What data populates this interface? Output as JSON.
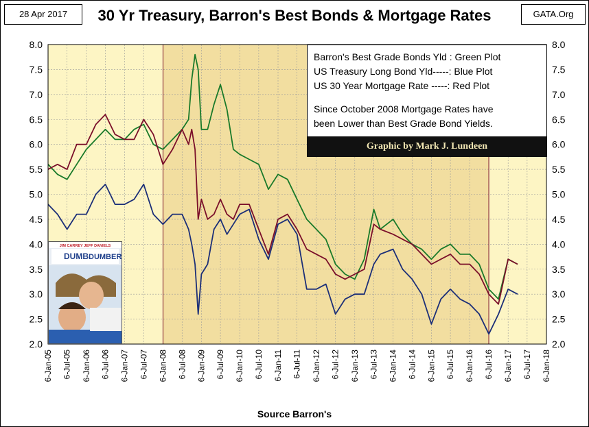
{
  "header": {
    "date": "28 Apr 2017",
    "title": "30 Yr Treasury, Barron's Best Bonds & Mortgage Rates",
    "source": "GATA.Org"
  },
  "legend": {
    "line1": "Barron's Best Grade Bonds Yld : Green Plot",
    "line2": "US Treasury Long Bond Yld-----: Blue Plot",
    "line3": "US 30 Year Mortgage Rate -----: Red Plot",
    "note1": "Since October 2008 Mortgage Rates have",
    "note2": "been Lower than Best Grade Bond Yields."
  },
  "credit": "Graphic by Mark J. Lundeen",
  "poster": {
    "line1": "JIM CARREY   JEFF DANIELS",
    "title1": "DUMB",
    "title2": "DUMBER"
  },
  "colors": {
    "plot_bg": "#fdf5c4",
    "shade_bg": "#f2deA0",
    "green": "#1a7a2a",
    "blue": "#1c2f78",
    "red": "#7a0f2a"
  },
  "chart_data": {
    "type": "line",
    "title": "30 Yr Treasury, Barron's Best Bonds & Mortgage Rates",
    "xlabel": "Source Barron's",
    "ylabel": "",
    "ylim": [
      2.0,
      8.0
    ],
    "xlim": [
      "2005-01-06",
      "2018-01-06"
    ],
    "y_ticks": [
      "2.0",
      "2.5",
      "3.0",
      "3.5",
      "4.0",
      "4.5",
      "5.0",
      "5.5",
      "6.0",
      "6.5",
      "7.0",
      "7.5",
      "8.0"
    ],
    "x_ticks": [
      "6-Jan-05",
      "6-Jul-05",
      "6-Jan-06",
      "6-Jul-06",
      "6-Jan-07",
      "6-Jul-07",
      "6-Jan-08",
      "6-Jul-08",
      "6-Jan-09",
      "6-Jul-09",
      "6-Jan-10",
      "6-Jul-10",
      "6-Jan-11",
      "6-Jul-11",
      "6-Jan-12",
      "6-Jul-12",
      "6-Jan-13",
      "6-Jul-13",
      "6-Jan-14",
      "6-Jul-14",
      "6-Jan-15",
      "6-Jul-15",
      "6-Jan-16",
      "6-Jul-16",
      "6-Jan-17",
      "6-Jul-17",
      "6-Jan-18"
    ],
    "shaded_range": [
      "2008-01-06",
      "2016-07-06"
    ],
    "grid": true,
    "series": [
      {
        "name": "Barron's Best Grade Bonds Yld",
        "color": "#1a7a2a",
        "x": [
          "2005-01",
          "2005-04",
          "2005-07",
          "2005-10",
          "2006-01",
          "2006-04",
          "2006-07",
          "2006-10",
          "2007-01",
          "2007-04",
          "2007-07",
          "2007-10",
          "2008-01",
          "2008-04",
          "2008-07",
          "2008-09",
          "2008-10",
          "2008-11",
          "2008-12",
          "2009-01",
          "2009-03",
          "2009-05",
          "2009-07",
          "2009-09",
          "2009-11",
          "2010-01",
          "2010-04",
          "2010-07",
          "2010-10",
          "2011-01",
          "2011-04",
          "2011-07",
          "2011-10",
          "2012-01",
          "2012-04",
          "2012-07",
          "2012-10",
          "2013-01",
          "2013-04",
          "2013-07",
          "2013-09",
          "2014-01",
          "2014-04",
          "2014-07",
          "2014-10",
          "2015-01",
          "2015-04",
          "2015-07",
          "2015-10",
          "2016-01",
          "2016-04",
          "2016-07",
          "2016-10",
          "2017-01",
          "2017-04"
        ],
        "y": [
          5.6,
          5.4,
          5.3,
          5.6,
          5.9,
          6.1,
          6.3,
          6.1,
          6.1,
          6.3,
          6.4,
          6.0,
          5.9,
          6.1,
          6.3,
          6.5,
          7.3,
          7.8,
          7.5,
          6.3,
          6.3,
          6.8,
          7.2,
          6.7,
          5.9,
          5.8,
          5.7,
          5.6,
          5.1,
          5.4,
          5.3,
          4.9,
          4.5,
          4.3,
          4.1,
          3.6,
          3.4,
          3.3,
          3.7,
          4.7,
          4.3,
          4.5,
          4.2,
          4.0,
          3.9,
          3.7,
          3.9,
          4.0,
          3.8,
          3.8,
          3.6,
          3.1,
          2.9,
          3.7,
          3.6
        ]
      },
      {
        "name": "US Treasury Long Bond Yld",
        "color": "#1c2f78",
        "x": [
          "2005-01",
          "2005-04",
          "2005-07",
          "2005-10",
          "2006-01",
          "2006-04",
          "2006-07",
          "2006-10",
          "2007-01",
          "2007-04",
          "2007-07",
          "2007-10",
          "2008-01",
          "2008-04",
          "2008-07",
          "2008-09",
          "2008-10",
          "2008-11",
          "2008-12",
          "2009-01",
          "2009-03",
          "2009-05",
          "2009-07",
          "2009-09",
          "2009-11",
          "2010-01",
          "2010-04",
          "2010-07",
          "2010-10",
          "2011-01",
          "2011-04",
          "2011-07",
          "2011-10",
          "2012-01",
          "2012-04",
          "2012-07",
          "2012-10",
          "2013-01",
          "2013-04",
          "2013-07",
          "2013-09",
          "2014-01",
          "2014-04",
          "2014-07",
          "2014-10",
          "2015-01",
          "2015-04",
          "2015-07",
          "2015-10",
          "2016-01",
          "2016-04",
          "2016-07",
          "2016-10",
          "2017-01",
          "2017-04"
        ],
        "y": [
          4.8,
          4.6,
          4.3,
          4.6,
          4.6,
          5.0,
          5.2,
          4.8,
          4.8,
          4.9,
          5.2,
          4.6,
          4.4,
          4.6,
          4.6,
          4.3,
          4.0,
          3.6,
          2.6,
          3.4,
          3.6,
          4.3,
          4.5,
          4.2,
          4.4,
          4.6,
          4.7,
          4.1,
          3.7,
          4.4,
          4.5,
          4.2,
          3.1,
          3.1,
          3.2,
          2.6,
          2.9,
          3.0,
          3.0,
          3.6,
          3.8,
          3.9,
          3.5,
          3.3,
          3.0,
          2.4,
          2.9,
          3.1,
          2.9,
          2.8,
          2.6,
          2.2,
          2.6,
          3.1,
          3.0
        ]
      },
      {
        "name": "US 30 Year Mortgage Rate",
        "color": "#7a0f2a",
        "x": [
          "2005-01",
          "2005-04",
          "2005-07",
          "2005-10",
          "2006-01",
          "2006-04",
          "2006-07",
          "2006-10",
          "2007-01",
          "2007-04",
          "2007-07",
          "2007-10",
          "2008-01",
          "2008-04",
          "2008-07",
          "2008-09",
          "2008-10",
          "2008-11",
          "2008-12",
          "2009-01",
          "2009-03",
          "2009-05",
          "2009-07",
          "2009-09",
          "2009-11",
          "2010-01",
          "2010-04",
          "2010-07",
          "2010-10",
          "2011-01",
          "2011-04",
          "2011-07",
          "2011-10",
          "2012-01",
          "2012-04",
          "2012-07",
          "2012-10",
          "2013-01",
          "2013-04",
          "2013-07",
          "2013-09",
          "2014-01",
          "2014-04",
          "2014-07",
          "2014-10",
          "2015-01",
          "2015-04",
          "2015-07",
          "2015-10",
          "2016-01",
          "2016-04",
          "2016-07",
          "2016-10",
          "2017-01",
          "2017-04"
        ],
        "y": [
          5.5,
          5.6,
          5.5,
          6.0,
          6.0,
          6.4,
          6.6,
          6.2,
          6.1,
          6.1,
          6.5,
          6.2,
          5.6,
          5.9,
          6.3,
          6.0,
          6.3,
          5.9,
          4.5,
          4.9,
          4.5,
          4.6,
          4.9,
          4.6,
          4.5,
          4.8,
          4.8,
          4.3,
          3.8,
          4.5,
          4.6,
          4.3,
          3.9,
          3.8,
          3.7,
          3.4,
          3.3,
          3.4,
          3.5,
          4.4,
          4.3,
          4.2,
          4.1,
          4.0,
          3.8,
          3.6,
          3.7,
          3.8,
          3.6,
          3.6,
          3.4,
          3.0,
          2.8,
          3.7,
          3.6
        ]
      }
    ]
  }
}
